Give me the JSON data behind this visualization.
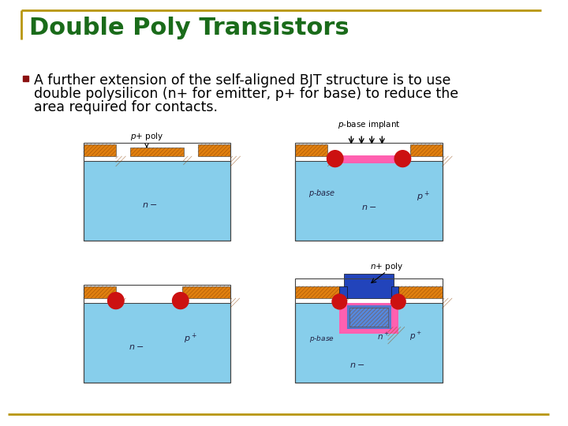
{
  "title": "Double Poly Transistors",
  "title_color": "#1a6b1a",
  "title_fontsize": 22,
  "bg_color": "#ffffff",
  "border_color": "#b8960c",
  "body_text_line1": "A further extension of the self-aligned BJT structure is to use",
  "body_text_line2": "double polysilicon (n+ for emitter, p+ for base) to reduce the",
  "body_text_line3": "area required for contacts.",
  "body_fontsize": 12.5,
  "colors": {
    "orange": "#E8820C",
    "light_blue": "#87CEEB",
    "blue_substrate": "#6AAFE6",
    "dark_blue": "#2244AA",
    "red": "#CC1111",
    "pink": "#FF69B4",
    "white": "#ffffff",
    "black": "#111111",
    "bullet": "#8B1111"
  }
}
